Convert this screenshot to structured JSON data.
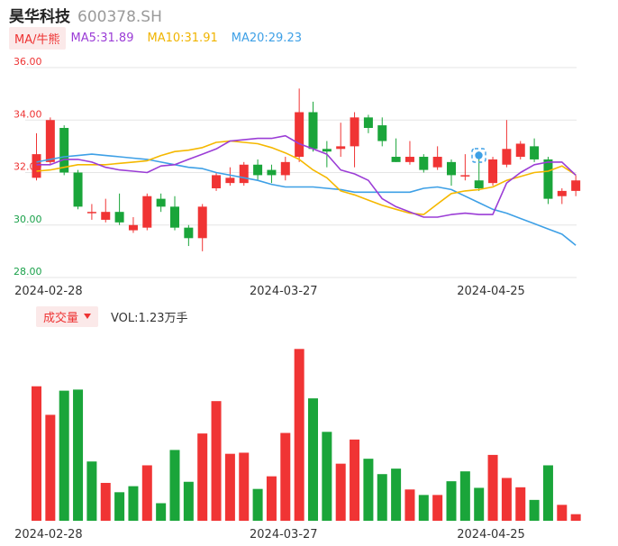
{
  "header": {
    "name": "昊华科技",
    "code": "600378.SH"
  },
  "ma_legend": {
    "label": "MA/牛熊",
    "ma5": "MA5:31.89",
    "ma10": "MA10:31.91",
    "ma20": "MA20:29.23"
  },
  "volume_legend": {
    "label": "成交量",
    "vol": "VOL:1.23万手"
  },
  "colors": {
    "up": "#f03434",
    "down": "#1aa53a",
    "ma5": "#9b3dd6",
    "ma10": "#f5b800",
    "ma20": "#3ea0e6",
    "grid": "#e6e6e6"
  },
  "chart_data": [
    {
      "type": "candlestick",
      "y_ticks": [
        "36.00",
        "34.00",
        "32.00",
        "30.00",
        "28.00"
      ],
      "ylim": [
        28,
        36
      ],
      "x_ticks": [
        {
          "label": "2024-02-28",
          "index": 1
        },
        {
          "label": "2024-03-27",
          "index": 18
        },
        {
          "label": "2024-04-25",
          "index": 33
        }
      ],
      "candles": [
        {
          "o": 31.8,
          "c": 32.7,
          "h": 33.5,
          "l": 31.7
        },
        {
          "o": 32.4,
          "c": 34.0,
          "h": 34.1,
          "l": 32.3
        },
        {
          "o": 33.7,
          "c": 32.0,
          "h": 33.8,
          "l": 31.9
        },
        {
          "o": 32.0,
          "c": 30.7,
          "h": 32.1,
          "l": 30.6
        },
        {
          "o": 30.5,
          "c": 30.5,
          "h": 30.8,
          "l": 30.2
        },
        {
          "o": 30.2,
          "c": 30.5,
          "h": 31.0,
          "l": 30.1
        },
        {
          "o": 30.5,
          "c": 30.1,
          "h": 31.2,
          "l": 30.0
        },
        {
          "o": 29.8,
          "c": 30.0,
          "h": 30.3,
          "l": 29.7
        },
        {
          "o": 29.9,
          "c": 31.1,
          "h": 31.2,
          "l": 29.8
        },
        {
          "o": 31.0,
          "c": 30.7,
          "h": 31.2,
          "l": 30.5
        },
        {
          "o": 30.7,
          "c": 29.9,
          "h": 31.1,
          "l": 29.8
        },
        {
          "o": 29.9,
          "c": 29.5,
          "h": 30.0,
          "l": 29.2
        },
        {
          "o": 29.5,
          "c": 30.7,
          "h": 30.8,
          "l": 29.0
        },
        {
          "o": 31.4,
          "c": 31.9,
          "h": 32.0,
          "l": 31.3
        },
        {
          "o": 31.6,
          "c": 31.8,
          "h": 32.2,
          "l": 31.5
        },
        {
          "o": 31.6,
          "c": 32.3,
          "h": 32.4,
          "l": 31.5
        },
        {
          "o": 32.3,
          "c": 31.9,
          "h": 32.5,
          "l": 31.7
        },
        {
          "o": 32.1,
          "c": 31.9,
          "h": 32.3,
          "l": 31.6
        },
        {
          "o": 31.9,
          "c": 32.4,
          "h": 32.6,
          "l": 31.7
        },
        {
          "o": 32.6,
          "c": 34.3,
          "h": 35.2,
          "l": 32.4
        },
        {
          "o": 34.3,
          "c": 32.9,
          "h": 34.7,
          "l": 32.8
        },
        {
          "o": 32.9,
          "c": 32.8,
          "h": 33.2,
          "l": 32.2
        },
        {
          "o": 32.9,
          "c": 33.0,
          "h": 33.9,
          "l": 32.6
        },
        {
          "o": 33.0,
          "c": 34.1,
          "h": 34.3,
          "l": 32.2
        },
        {
          "o": 34.1,
          "c": 33.7,
          "h": 34.2,
          "l": 33.5
        },
        {
          "o": 33.8,
          "c": 33.2,
          "h": 34.1,
          "l": 33.0
        },
        {
          "o": 32.6,
          "c": 32.4,
          "h": 33.3,
          "l": 32.4
        },
        {
          "o": 32.4,
          "c": 32.6,
          "h": 33.2,
          "l": 32.3
        },
        {
          "o": 32.6,
          "c": 32.1,
          "h": 32.7,
          "l": 32.0
        },
        {
          "o": 32.2,
          "c": 32.6,
          "h": 33.0,
          "l": 32.1
        },
        {
          "o": 32.4,
          "c": 31.9,
          "h": 32.5,
          "l": 31.5
        },
        {
          "o": 31.9,
          "c": 31.9,
          "h": 32.7,
          "l": 31.7
        },
        {
          "o": 31.7,
          "c": 31.4,
          "h": 32.8,
          "l": 31.3
        },
        {
          "o": 31.6,
          "c": 32.5,
          "h": 32.6,
          "l": 31.5
        },
        {
          "o": 32.3,
          "c": 32.9,
          "h": 34.0,
          "l": 32.2
        },
        {
          "o": 32.6,
          "c": 33.1,
          "h": 33.2,
          "l": 32.5
        },
        {
          "o": 33.0,
          "c": 32.5,
          "h": 33.3,
          "l": 32.4
        },
        {
          "o": 32.5,
          "c": 31.0,
          "h": 32.6,
          "l": 30.8
        },
        {
          "o": 31.1,
          "c": 31.3,
          "h": 31.4,
          "l": 30.8
        },
        {
          "o": 31.3,
          "c": 31.7,
          "h": 31.9,
          "l": 31.1
        }
      ],
      "ma5": [
        32.3,
        32.3,
        32.5,
        32.5,
        32.4,
        32.2,
        32.1,
        32.05,
        32.0,
        32.25,
        32.3,
        32.5,
        32.7,
        32.9,
        33.2,
        33.25,
        33.3,
        33.3,
        33.4,
        33.1,
        32.9,
        32.7,
        32.1,
        31.95,
        31.7,
        31.0,
        30.7,
        30.5,
        30.3,
        30.3,
        30.4,
        30.45,
        30.4,
        30.4,
        31.6,
        32.0,
        32.3,
        32.4,
        32.4,
        31.9
      ],
      "ma10": [
        32.05,
        32.1,
        32.2,
        32.3,
        32.3,
        32.3,
        32.35,
        32.4,
        32.45,
        32.65,
        32.8,
        32.85,
        32.95,
        33.15,
        33.2,
        33.15,
        33.1,
        32.95,
        32.75,
        32.5,
        32.1,
        31.8,
        31.3,
        31.15,
        30.95,
        30.75,
        30.6,
        30.45,
        30.4,
        30.8,
        31.2,
        31.3,
        31.35,
        31.45,
        31.7,
        31.85,
        32.0,
        32.05,
        32.25,
        31.91
      ],
      "ma20": [
        32.4,
        32.5,
        32.6,
        32.65,
        32.7,
        32.65,
        32.6,
        32.55,
        32.5,
        32.4,
        32.3,
        32.2,
        32.15,
        32.0,
        31.9,
        31.8,
        31.7,
        31.55,
        31.45,
        31.45,
        31.45,
        31.4,
        31.35,
        31.25,
        31.25,
        31.25,
        31.25,
        31.25,
        31.4,
        31.45,
        31.35,
        31.1,
        30.85,
        30.6,
        30.45,
        30.25,
        30.05,
        29.85,
        29.65,
        29.23
      ]
    },
    {
      "type": "bar",
      "title": "成交量",
      "values": [
        2.45,
        1.93,
        2.37,
        2.39,
        1.08,
        0.69,
        0.52,
        0.63,
        1.01,
        0.32,
        1.29,
        0.71,
        1.59,
        2.18,
        1.22,
        1.24,
        0.58,
        0.81,
        1.6,
        3.13,
        2.23,
        1.62,
        1.04,
        1.48,
        1.13,
        0.85,
        0.95,
        0.57,
        0.47,
        0.47,
        0.72,
        0.9,
        0.6,
        1.2,
        0.78,
        0.61,
        0.38,
        1.01,
        0.29,
        0.12
      ],
      "directions": [
        "up",
        "up",
        "down",
        "down",
        "down",
        "up",
        "down",
        "down",
        "up",
        "down",
        "down",
        "down",
        "up",
        "up",
        "up",
        "up",
        "down",
        "up",
        "up",
        "up",
        "down",
        "down",
        "up",
        "up",
        "down",
        "down",
        "down",
        "up",
        "down",
        "up",
        "down",
        "down",
        "down",
        "up",
        "up",
        "up",
        "down",
        "down",
        "up",
        "up"
      ]
    }
  ]
}
